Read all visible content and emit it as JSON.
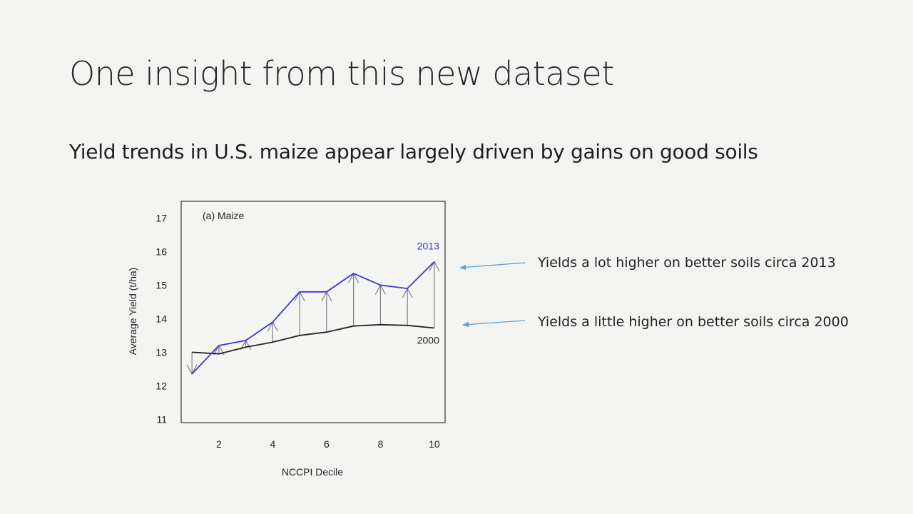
{
  "slide": {
    "title": "One insight from this new dataset",
    "subtitle": "Yield trends in U.S. maize appear largely driven by gains on good soils"
  },
  "annotations": {
    "a2013": "Yields a lot higher on better soils circa 2013",
    "a2000": "Yields a little higher on better soils circa 2000"
  },
  "colors": {
    "series2013": "#3a36e0",
    "series2000": "#222222",
    "arrow": "#6a6a6a",
    "pointer": "#5a9fd6"
  },
  "chart_data": {
    "type": "line",
    "panel_label": "(a) Maize",
    "xlabel": "NCCPI Decile",
    "ylabel": "Average Yield (t/ha)",
    "xlim": [
      0.6,
      10.4
    ],
    "ylim": [
      10.9,
      17.5
    ],
    "xticks": [
      2,
      4,
      6,
      8,
      10
    ],
    "yticks": [
      11,
      12,
      13,
      14,
      15,
      16,
      17
    ],
    "x": [
      1,
      2,
      3,
      4,
      5,
      6,
      7,
      8,
      9,
      10
    ],
    "series": [
      {
        "name": "2013",
        "values": [
          12.35,
          13.2,
          13.35,
          13.9,
          14.8,
          14.8,
          15.35,
          15.0,
          14.9,
          15.7
        ]
      },
      {
        "name": "2000",
        "values": [
          13.0,
          12.95,
          13.15,
          13.3,
          13.5,
          13.6,
          13.78,
          13.82,
          13.8,
          13.72
        ]
      }
    ],
    "grid": false
  }
}
